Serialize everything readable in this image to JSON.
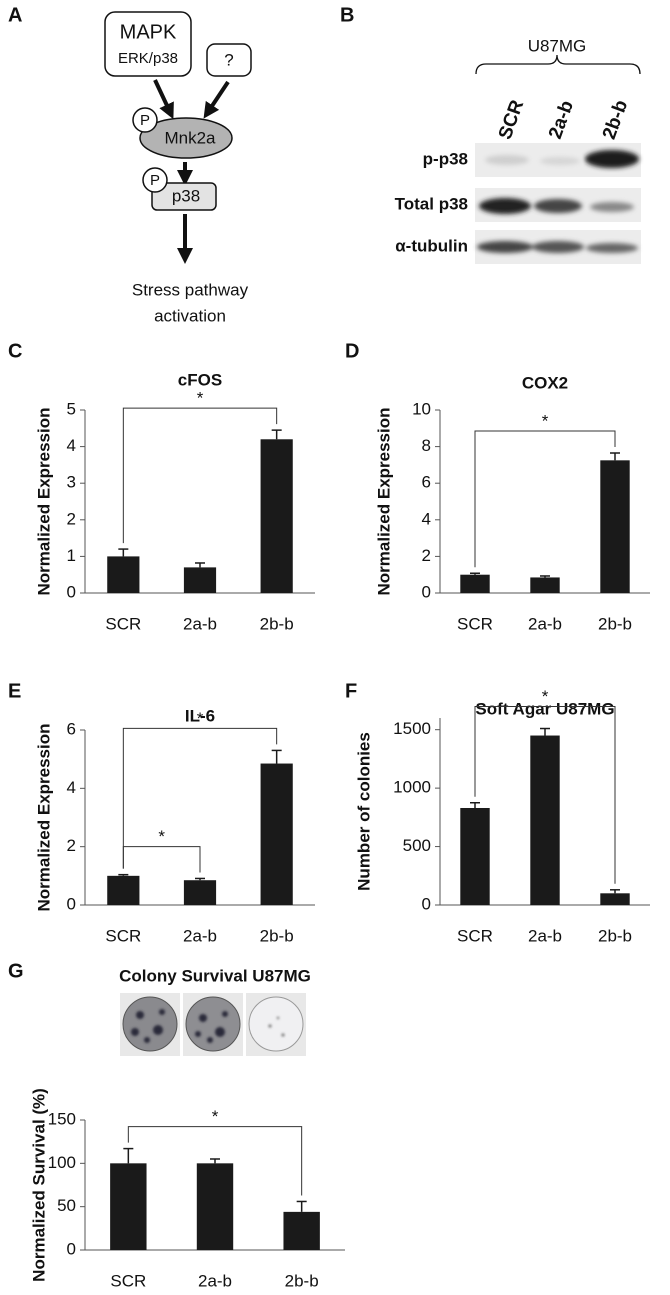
{
  "panel_labels": [
    "A",
    "B",
    "C",
    "D",
    "E",
    "F",
    "G"
  ],
  "diagram": {
    "upstream": {
      "label": "MAPK",
      "sublabel": "ERK/p38"
    },
    "unknown": "?",
    "kinase": "Mnk2a",
    "target": "p38",
    "phospho": "P",
    "outcome": [
      "Stress pathway",
      "activation"
    ]
  },
  "blot": {
    "cell_line": "U87MG",
    "lanes": [
      "SCR",
      "2a-b",
      "2b-b"
    ],
    "rows": [
      "p-p38",
      "Total p38",
      "α-tubulin"
    ]
  },
  "chart_data": [
    {
      "type": "bar",
      "title": "cFOS",
      "ylabel": "Normalized Expression",
      "categories": [
        "SCR",
        "2a-b",
        "2b-b"
      ],
      "values": [
        1.0,
        0.7,
        4.2
      ],
      "errors": [
        0.2,
        0.12,
        0.25
      ],
      "color": "#1a1a1a",
      "ylim": [
        0,
        5
      ],
      "yticks": [
        0,
        1,
        2,
        3,
        4,
        5
      ],
      "significance": [
        {
          "pair": [
            "SCR",
            "2b-b"
          ],
          "label": "*"
        }
      ]
    },
    {
      "type": "bar",
      "title": "COX2",
      "ylabel": "Normalized Expression",
      "categories": [
        "SCR",
        "2a-b",
        "2b-b"
      ],
      "values": [
        1.0,
        0.85,
        7.25
      ],
      "errors": [
        0.08,
        0.08,
        0.4
      ],
      "color": "#1a1a1a",
      "ylim": [
        0,
        10
      ],
      "yticks": [
        0,
        2,
        4,
        6,
        8,
        10
      ],
      "significance": [
        {
          "pair": [
            "SCR",
            "2b-b"
          ],
          "label": "*"
        }
      ]
    },
    {
      "type": "bar",
      "title": "IL-6",
      "ylabel": "Normalized Expression",
      "categories": [
        "SCR",
        "2a-b",
        "2b-b"
      ],
      "values": [
        1.0,
        0.85,
        4.85
      ],
      "errors": [
        0.04,
        0.06,
        0.45
      ],
      "color": "#1a1a1a",
      "ylim": [
        0,
        6
      ],
      "yticks": [
        0,
        2,
        4,
        6
      ],
      "significance": [
        {
          "pair": [
            "SCR",
            "2b-b"
          ],
          "label": "*"
        },
        {
          "pair": [
            "SCR",
            "2a-b"
          ],
          "label": "*"
        }
      ]
    },
    {
      "type": "bar",
      "title": "Soft Agar U87MG",
      "ylabel": "Number of colonies",
      "categories": [
        "SCR",
        "2a-b",
        "2b-b"
      ],
      "values": [
        830,
        1450,
        100
      ],
      "errors": [
        45,
        60,
        30
      ],
      "color": "#1a1a1a",
      "ylim": [
        0,
        1600
      ],
      "yticks": [
        0,
        500,
        1000,
        1500
      ],
      "significance": [
        {
          "pair": [
            "SCR",
            "2b-b"
          ],
          "label": "*"
        }
      ]
    },
    {
      "type": "bar",
      "title": "Colony Survival U87MG",
      "ylabel": "Normalized Survival (%)",
      "categories": [
        "SCR",
        "2a-b",
        "2b-b"
      ],
      "values": [
        100,
        100,
        44
      ],
      "errors": [
        17,
        5,
        12
      ],
      "color": "#1a1a1a",
      "ylim": [
        0,
        150
      ],
      "yticks": [
        0,
        50,
        100,
        150
      ],
      "significance": [
        {
          "pair": [
            "SCR",
            "2b-b"
          ],
          "label": "*"
        }
      ]
    }
  ]
}
